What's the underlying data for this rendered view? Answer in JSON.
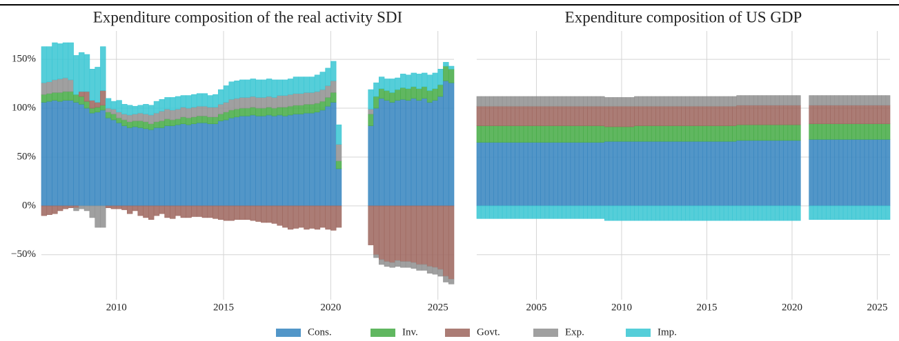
{
  "chart_data": [
    {
      "type": "bar",
      "stacked": true,
      "title": "Expenditure composition of the real activity SDI",
      "x": [
        2006.5,
        2006.75,
        2007,
        2007.25,
        2007.5,
        2007.75,
        2008,
        2008.25,
        2008.5,
        2008.75,
        2009,
        2009.25,
        2009.5,
        2009.75,
        2010,
        2010.25,
        2010.5,
        2010.75,
        2011,
        2011.25,
        2011.5,
        2011.75,
        2012,
        2012.25,
        2012.5,
        2012.75,
        2013,
        2013.25,
        2013.5,
        2013.75,
        2014,
        2014.25,
        2014.5,
        2014.75,
        2015,
        2015.25,
        2015.5,
        2015.75,
        2016,
        2016.25,
        2016.5,
        2016.75,
        2017,
        2017.25,
        2017.5,
        2017.75,
        2018,
        2018.25,
        2018.5,
        2018.75,
        2019,
        2019.25,
        2019.5,
        2019.75,
        2020,
        2020.25,
        2020.5,
        2020.75,
        2021,
        2021.25,
        2021.5,
        2021.75,
        2022,
        2022.25,
        2022.5,
        2022.75,
        2023,
        2023.25,
        2023.5,
        2023.75,
        2024,
        2024.25,
        2024.5,
        2024.75,
        2025,
        2025.25,
        2025.5
      ],
      "series": [
        {
          "name": "Cons.",
          "color": "#3a87c0",
          "values": [
            106,
            107,
            108,
            107,
            108,
            108,
            106,
            104,
            100,
            95,
            96,
            98,
            90,
            88,
            85,
            82,
            80,
            81,
            80,
            79,
            78,
            80,
            80,
            82,
            82,
            83,
            84,
            83,
            84,
            85,
            85,
            84,
            84,
            87,
            88,
            90,
            91,
            92,
            92,
            93,
            92,
            92,
            93,
            92,
            93,
            92,
            93,
            94,
            94,
            95,
            95,
            96,
            98,
            102,
            106,
            38,
            null,
            null,
            null,
            null,
            null,
            82,
            100,
            110,
            108,
            106,
            108,
            109,
            108,
            110,
            108,
            110,
            106,
            108,
            112,
            128,
            126
          ]
        },
        {
          "name": "Inv.",
          "color": "#4aad4a",
          "values": [
            8,
            8,
            8,
            9,
            9,
            9,
            8,
            8,
            7,
            5,
            5,
            5,
            6,
            6,
            5,
            6,
            6,
            6,
            7,
            7,
            6,
            6,
            7,
            7,
            6,
            6,
            7,
            7,
            7,
            7,
            7,
            7,
            7,
            7,
            8,
            8,
            8,
            8,
            8,
            8,
            8,
            8,
            8,
            8,
            8,
            9,
            9,
            9,
            9,
            9,
            9,
            9,
            9,
            9,
            10,
            8,
            null,
            null,
            null,
            null,
            null,
            12,
            12,
            10,
            10,
            10,
            11,
            12,
            12,
            12,
            12,
            12,
            12,
            12,
            12,
            15,
            14
          ]
        },
        {
          "name": "Govt.",
          "color": "#9f6a62",
          "values": [
            -10,
            -9,
            -8,
            -5,
            -3,
            -2,
            -2,
            5,
            10,
            8,
            5,
            15,
            -2,
            -3,
            -3,
            -4,
            -8,
            -5,
            -10,
            -12,
            -14,
            -10,
            -8,
            -12,
            -13,
            -10,
            -12,
            -12,
            -11,
            -11,
            -12,
            -12,
            -13,
            -14,
            -15,
            -15,
            -14,
            -14,
            -14,
            -15,
            -16,
            -17,
            -17,
            -18,
            -20,
            -22,
            -24,
            -23,
            -22,
            -24,
            -23,
            -24,
            -22,
            -24,
            -25,
            -22,
            null,
            null,
            null,
            null,
            null,
            -40,
            -50,
            -55,
            -57,
            -58,
            -56,
            -57,
            -57,
            -58,
            -60,
            -60,
            -62,
            -63,
            -65,
            -72,
            -75
          ]
        },
        {
          "name": "Exp.",
          "color": "#939393",
          "values": [
            12,
            12,
            13,
            14,
            14,
            12,
            -3,
            -3,
            -5,
            -12,
            -22,
            -22,
            4,
            5,
            6,
            6,
            7,
            7,
            8,
            8,
            9,
            9,
            10,
            10,
            10,
            10,
            10,
            10,
            10,
            10,
            10,
            10,
            10,
            10,
            10,
            11,
            11,
            11,
            11,
            11,
            11,
            11,
            11,
            11,
            12,
            12,
            12,
            12,
            12,
            12,
            12,
            12,
            12,
            12,
            12,
            17,
            null,
            null,
            null,
            null,
            null,
            5,
            -3,
            -5,
            -5,
            -5,
            -6,
            -6,
            -6,
            -6,
            -6,
            -6,
            -7,
            -7,
            -7,
            -6,
            -5
          ]
        },
        {
          "name": "Imp.",
          "color": "#3ec7d4",
          "values": [
            37,
            36,
            38,
            36,
            36,
            38,
            40,
            40,
            38,
            32,
            36,
            45,
            10,
            8,
            12,
            10,
            10,
            8,
            8,
            10,
            10,
            12,
            12,
            12,
            13,
            13,
            12,
            13,
            13,
            13,
            13,
            12,
            13,
            15,
            17,
            18,
            18,
            18,
            18,
            18,
            18,
            18,
            18,
            18,
            16,
            16,
            16,
            17,
            17,
            16,
            16,
            17,
            18,
            18,
            20,
            20,
            null,
            null,
            null,
            null,
            null,
            20,
            14,
            12,
            12,
            14,
            12,
            14,
            14,
            14,
            15,
            14,
            16,
            16,
            16,
            4,
            3
          ]
        }
      ],
      "xlim": [
        2006.5,
        2025.75
      ],
      "xticks": [
        2010,
        2015,
        2020,
        2025
      ],
      "ylim": [
        -96,
        179
      ],
      "yticks": [
        {
          "value": -50,
          "label": "−50%"
        },
        {
          "value": 0,
          "label": "0%"
        },
        {
          "value": 50,
          "label": "50%"
        },
        {
          "value": 100,
          "label": "100%"
        },
        {
          "value": 150,
          "label": "150%"
        }
      ],
      "grid": true,
      "legend": "bottom"
    },
    {
      "type": "bar",
      "stacked": true,
      "title": "Expenditure composition of US GDP",
      "x": [
        2001.5,
        2001.75,
        2002,
        2002.25,
        2002.5,
        2002.75,
        2003,
        2003.25,
        2003.5,
        2003.75,
        2004,
        2004.25,
        2004.5,
        2004.75,
        2005,
        2005.25,
        2005.5,
        2005.75,
        2006,
        2006.25,
        2006.5,
        2006.75,
        2007,
        2007.25,
        2007.5,
        2007.75,
        2008,
        2008.25,
        2008.5,
        2008.75,
        2009,
        2009.25,
        2009.5,
        2009.75,
        2010,
        2010.25,
        2010.5,
        2010.75,
        2011,
        2011.25,
        2011.5,
        2011.75,
        2012,
        2012.25,
        2012.5,
        2012.75,
        2013,
        2013.25,
        2013.5,
        2013.75,
        2014,
        2014.25,
        2014.5,
        2014.75,
        2015,
        2015.25,
        2015.5,
        2015.75,
        2016,
        2016.25,
        2016.5,
        2016.75,
        2017,
        2017.25,
        2017.5,
        2017.75,
        2018,
        2018.25,
        2018.5,
        2018.75,
        2019,
        2019.25,
        2019.5,
        2019.75,
        2020,
        2020.25,
        2020.5,
        2020.75,
        2021,
        2021.25,
        2021.5,
        2021.75,
        2022,
        2022.25,
        2022.5,
        2022.75,
        2023,
        2023.25,
        2023.5,
        2023.75,
        2024,
        2024.25,
        2024.5,
        2024.75,
        2025,
        2025.25,
        2025.5
      ],
      "series": [
        {
          "color": "#3a87c0",
          "values": [
            65,
            65,
            65,
            65,
            65,
            65,
            65,
            65,
            65,
            65,
            65,
            65,
            65,
            65,
            65,
            65,
            65,
            65,
            65,
            65,
            65,
            65,
            65,
            65,
            65,
            65,
            65,
            65,
            65,
            65,
            66,
            66,
            66,
            66,
            66,
            66,
            66,
            66,
            66,
            66,
            66,
            66,
            66,
            66,
            66,
            66,
            66,
            66,
            66,
            66,
            66,
            66,
            66,
            66,
            66,
            66,
            66,
            66,
            66,
            66,
            66,
            67,
            67,
            67,
            67,
            67,
            67,
            67,
            67,
            67,
            67,
            67,
            67,
            67,
            67,
            67,
            null,
            null,
            68,
            68,
            68,
            68,
            68,
            68,
            68,
            68,
            68,
            68,
            68,
            68,
            68,
            68,
            68,
            68,
            68,
            68,
            68
          ]
        },
        {
          "color": "#4aad4a",
          "values": [
            17,
            17,
            17,
            17,
            17,
            17,
            17,
            17,
            17,
            17,
            17,
            17,
            17,
            17,
            17,
            17,
            17,
            17,
            17,
            17,
            17,
            17,
            17,
            17,
            17,
            17,
            17,
            17,
            17,
            17,
            15,
            15,
            15,
            15,
            15,
            15,
            15,
            16,
            16,
            16,
            16,
            16,
            16,
            16,
            16,
            16,
            16,
            16,
            16,
            16,
            16,
            16,
            16,
            16,
            16,
            16,
            16,
            16,
            16,
            16,
            16,
            16,
            16,
            16,
            16,
            16,
            16,
            16,
            16,
            16,
            16,
            16,
            16,
            16,
            16,
            16,
            null,
            null,
            16,
            16,
            16,
            16,
            16,
            16,
            16,
            16,
            16,
            16,
            16,
            16,
            16,
            16,
            16,
            16,
            16,
            16,
            16
          ]
        },
        {
          "color": "#9f6a62",
          "values": [
            20,
            20,
            20,
            20,
            20,
            20,
            20,
            20,
            20,
            20,
            20,
            20,
            20,
            20,
            20,
            20,
            20,
            20,
            20,
            20,
            20,
            20,
            20,
            20,
            20,
            20,
            20,
            20,
            20,
            20,
            21,
            21,
            21,
            21,
            21,
            21,
            21,
            20,
            20,
            20,
            20,
            20,
            20,
            20,
            20,
            20,
            20,
            20,
            20,
            20,
            20,
            20,
            20,
            20,
            20,
            20,
            20,
            20,
            20,
            20,
            20,
            20,
            20,
            20,
            20,
            20,
            20,
            20,
            20,
            20,
            20,
            20,
            20,
            20,
            20,
            20,
            null,
            null,
            19,
            19,
            19,
            19,
            19,
            19,
            19,
            19,
            19,
            19,
            19,
            19,
            19,
            19,
            19,
            19,
            19,
            19,
            19
          ]
        },
        {
          "color": "#939393",
          "values": [
            10,
            10,
            10,
            10,
            10,
            10,
            10,
            10,
            10,
            10,
            10,
            10,
            10,
            10,
            10,
            10,
            10,
            10,
            10,
            10,
            10,
            10,
            10,
            10,
            10,
            10,
            10,
            10,
            10,
            10,
            9,
            9,
            9,
            9,
            9,
            9,
            9,
            10,
            10,
            10,
            10,
            10,
            10,
            10,
            10,
            10,
            10,
            10,
            10,
            10,
            10,
            10,
            10,
            10,
            10,
            10,
            10,
            10,
            10,
            10,
            10,
            10,
            10,
            10,
            10,
            10,
            10,
            10,
            10,
            10,
            10,
            10,
            10,
            10,
            10,
            10,
            null,
            null,
            10,
            10,
            10,
            10,
            10,
            10,
            10,
            10,
            10,
            10,
            10,
            10,
            10,
            10,
            10,
            10,
            10,
            10,
            10
          ]
        },
        {
          "color": "#3ec7d4",
          "values": [
            -13,
            -13,
            -13,
            -13,
            -13,
            -13,
            -13,
            -13,
            -13,
            -13,
            -13,
            -13,
            -13,
            -13,
            -13,
            -13,
            -13,
            -13,
            -13,
            -13,
            -13,
            -13,
            -13,
            -13,
            -13,
            -13,
            -13,
            -13,
            -13,
            -13,
            -15,
            -15,
            -15,
            -15,
            -15,
            -15,
            -15,
            -15,
            -15,
            -15,
            -15,
            -15,
            -15,
            -15,
            -15,
            -15,
            -15,
            -15,
            -15,
            -15,
            -15,
            -15,
            -15,
            -15,
            -15,
            -15,
            -15,
            -15,
            -15,
            -15,
            -15,
            -15,
            -15,
            -15,
            -15,
            -15,
            -15,
            -15,
            -15,
            -15,
            -15,
            -15,
            -15,
            -15,
            -15,
            -15,
            null,
            null,
            -14,
            -14,
            -14,
            -14,
            -14,
            -14,
            -14,
            -14,
            -14,
            -14,
            -14,
            -14,
            -14,
            -14,
            -14,
            -14,
            -14,
            -14,
            -14
          ]
        }
      ],
      "xlim": [
        2001.5,
        2025.75
      ],
      "xticks": [
        2005,
        2010,
        2015,
        2020,
        2025
      ],
      "ylim": [
        -96,
        179
      ],
      "yticks": [
        -50,
        0,
        50,
        100,
        150
      ],
      "grid": true
    }
  ]
}
